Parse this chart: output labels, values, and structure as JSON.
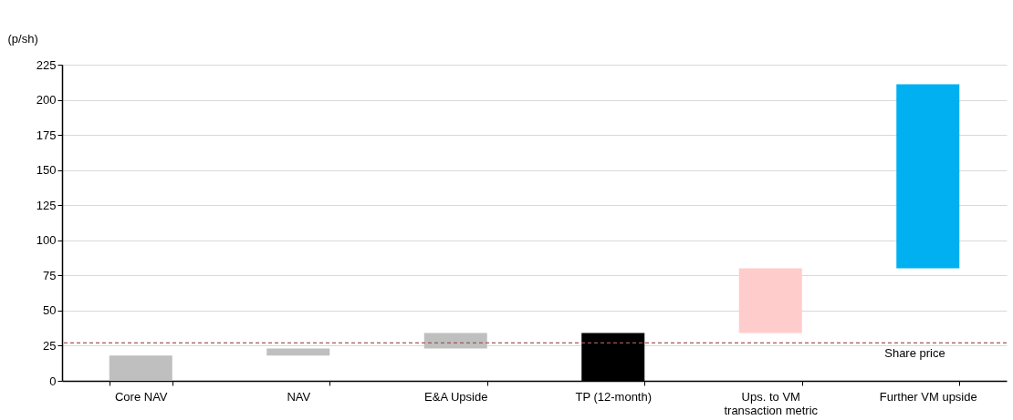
{
  "chart_data": {
    "type": "bar",
    "ylabel": "(p/sh)",
    "categories": [
      "Core NAV",
      "NAV",
      "E&A Upside",
      "TP (12-month)",
      "Ups. to VM transaction metric",
      "Further VM upside"
    ],
    "values": [
      18,
      5,
      11,
      34,
      46,
      131
    ],
    "base": [
      0,
      18,
      23,
      0,
      34,
      80
    ],
    "colors": [
      "#bfbfbf",
      "#bfbfbf",
      "#bfbfbf",
      "#000000",
      "#ffcccc",
      "#00b0f0"
    ],
    "ylim": [
      0,
      225
    ],
    "yticks": [
      0,
      25,
      50,
      75,
      100,
      125,
      150,
      175,
      200,
      225
    ],
    "grid": "y",
    "ref_lines": [
      {
        "axis": "y",
        "value": 27,
        "label": "Share price",
        "color": "#a05a5a",
        "line_style": "dashed"
      }
    ]
  }
}
